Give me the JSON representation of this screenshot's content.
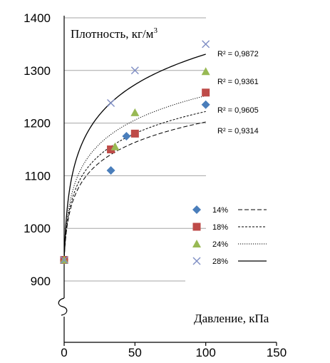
{
  "chart_data": {
    "type": "scatter",
    "ylabel": "Плотность, кг/м",
    "ylabel_sup": "3",
    "xlabel": "Давление, кПа",
    "xlim": [
      0,
      150
    ],
    "ylim": [
      900,
      1400
    ],
    "xticks": [
      "0",
      "50",
      "100",
      "150"
    ],
    "yticks": [
      "900",
      "1000",
      "1100",
      "1200",
      "1300",
      "1400"
    ],
    "grid": true,
    "axis_break": true,
    "legend_position": "lower-right",
    "series": [
      {
        "name": "14%",
        "marker": "diamond",
        "color": "#4a7ebb",
        "line": "dashed",
        "x": [
          0,
          33,
          44,
          100
        ],
        "y": [
          940,
          1110,
          1175,
          1235
        ],
        "trend_a": 940,
        "trend_b": 56.8,
        "r2": "R² = 0,9314"
      },
      {
        "name": "18%",
        "marker": "square",
        "color": "#be4b48",
        "line": "dense-dashed",
        "x": [
          0,
          33,
          50,
          100
        ],
        "y": [
          940,
          1150,
          1180,
          1258
        ],
        "trend_a": 940,
        "trend_b": 61.1,
        "r2": "R² = 0,9605"
      },
      {
        "name": "24%",
        "marker": "triangle",
        "color": "#98b954",
        "line": "dotted",
        "x": [
          0,
          36,
          50,
          100
        ],
        "y": [
          940,
          1155,
          1220,
          1298
        ],
        "trend_a": 940,
        "trend_b": 67.6,
        "r2": "R² = 0,9361"
      },
      {
        "name": "28%",
        "marker": "x",
        "color": "#7f8ec4",
        "line": "solid",
        "x": [
          0,
          33,
          50,
          100
        ],
        "y": [
          940,
          1238,
          1300,
          1350
        ],
        "trend_a": 940,
        "trend_b": 84.7,
        "r2": "R² = 0,9872"
      }
    ]
  }
}
